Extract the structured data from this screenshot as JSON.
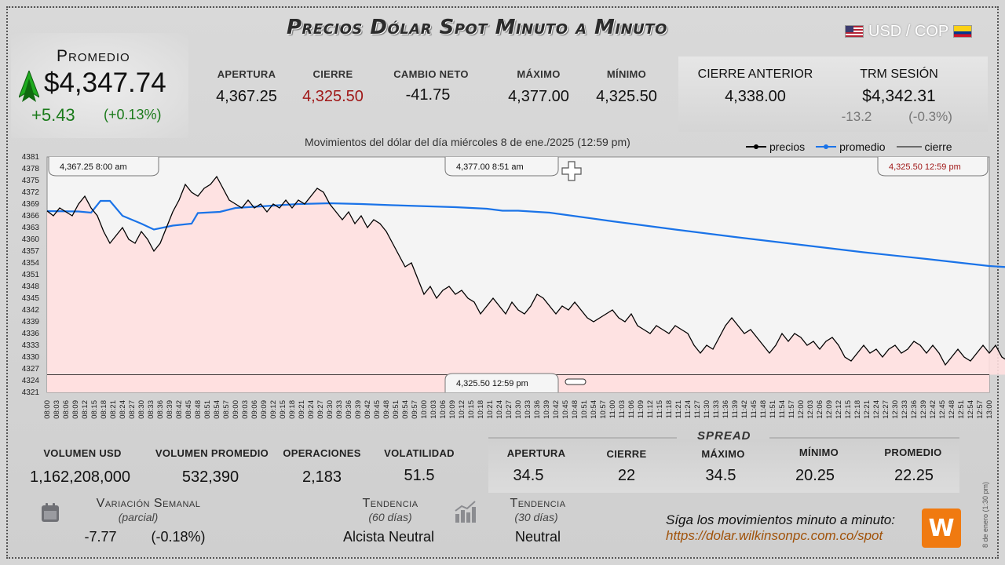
{
  "header": {
    "title": "Precios Dólar Spot Minuto a Minuto",
    "pair_label": "USD / COP"
  },
  "promedio": {
    "label": "Promedio",
    "value": "$4,347.74",
    "change": "+5.43",
    "change_pct": "(+0.13%)"
  },
  "stats": [
    {
      "label": "APERTURA",
      "value": "4,367.25"
    },
    {
      "label": "CIERRE",
      "value": "4,325.50"
    },
    {
      "label": "CAMBIO NETO",
      "value": "-41.75"
    },
    {
      "label": "MÁXIMO",
      "value": "4,377.00"
    },
    {
      "label": "MÍNIMO",
      "value": "4,325.50"
    }
  ],
  "previous": {
    "close_label": "CIERRE ANTERIOR",
    "close_value": "4,338.00",
    "trm_label": "TRM SESIÓN",
    "trm_value": "$4,342.31",
    "trm_change": "-13.2",
    "trm_change_pct": "(-0.3%)"
  },
  "chart_data": {
    "type": "line",
    "title": "Movimientos del dólar del día miércoles 8 de ene./2025 (12:59 pm)",
    "legend": [
      "precios",
      "promedio",
      "cierre"
    ],
    "legend_position": "top-right",
    "ylim": [
      4321,
      4381
    ],
    "yticks": [
      4381,
      4378,
      4375,
      4372,
      4369,
      4366,
      4363,
      4360,
      4357,
      4354,
      4351,
      4348,
      4345,
      4342,
      4339,
      4336,
      4333,
      4330,
      4327,
      4324,
      4321
    ],
    "xticks": [
      "08:00",
      "08:03",
      "08:06",
      "08:09",
      "08:12",
      "08:15",
      "08:18",
      "08:21",
      "08:24",
      "08:27",
      "08:30",
      "08:33",
      "08:36",
      "08:39",
      "08:42",
      "08:45",
      "08:48",
      "08:51",
      "08:54",
      "08:57",
      "09:00",
      "09:03",
      "09:06",
      "09:09",
      "09:12",
      "09:15",
      "09:18",
      "09:21",
      "09:24",
      "09:27",
      "09:30",
      "09:33",
      "09:36",
      "09:39",
      "09:42",
      "09:45",
      "09:48",
      "09:51",
      "09:54",
      "09:57",
      "10:00",
      "10:03",
      "10:06",
      "10:09",
      "10:12",
      "10:15",
      "10:18",
      "10:21",
      "10:24",
      "10:27",
      "10:30",
      "10:33",
      "10:36",
      "10:39",
      "10:42",
      "10:45",
      "10:48",
      "10:51",
      "10:54",
      "10:57",
      "11:00",
      "11:03",
      "11:06",
      "11:09",
      "11:12",
      "11:15",
      "11:18",
      "11:21",
      "11:24",
      "11:27",
      "11:30",
      "11:33",
      "11:36",
      "11:39",
      "11:42",
      "11:45",
      "11:48",
      "11:51",
      "11:54",
      "11:57",
      "12:00",
      "12:03",
      "12:06",
      "12:09",
      "12:12",
      "12:15",
      "12:18",
      "12:21",
      "12:24",
      "12:27",
      "12:30",
      "12:33",
      "12:36",
      "12:39",
      "12:42",
      "12:45",
      "12:48",
      "12:51",
      "12:54",
      "12:57",
      "13:00"
    ],
    "precios": {
      "name": "precios",
      "color": "#000000",
      "points": [
        [
          0,
          4367.25
        ],
        [
          2,
          4366
        ],
        [
          4,
          4368
        ],
        [
          6,
          4367
        ],
        [
          8,
          4366
        ],
        [
          10,
          4369
        ],
        [
          12,
          4371
        ],
        [
          14,
          4368
        ],
        [
          16,
          4366
        ],
        [
          18,
          4362
        ],
        [
          20,
          4359
        ],
        [
          22,
          4361
        ],
        [
          24,
          4363
        ],
        [
          26,
          4360
        ],
        [
          28,
          4359
        ],
        [
          30,
          4362
        ],
        [
          32,
          4360
        ],
        [
          34,
          4357
        ],
        [
          36,
          4359
        ],
        [
          38,
          4363
        ],
        [
          40,
          4367
        ],
        [
          42,
          4370
        ],
        [
          44,
          4374
        ],
        [
          46,
          4372
        ],
        [
          48,
          4371
        ],
        [
          50,
          4373
        ],
        [
          52,
          4374
        ],
        [
          54,
          4376
        ],
        [
          56,
          4373
        ],
        [
          58,
          4370
        ],
        [
          60,
          4369
        ],
        [
          62,
          4368
        ],
        [
          64,
          4370
        ],
        [
          66,
          4368
        ],
        [
          68,
          4369
        ],
        [
          70,
          4367
        ],
        [
          72,
          4369
        ],
        [
          74,
          4368
        ],
        [
          76,
          4370
        ],
        [
          78,
          4368
        ],
        [
          80,
          4370
        ],
        [
          82,
          4369
        ],
        [
          84,
          4371
        ],
        [
          86,
          4373
        ],
        [
          88,
          4372
        ],
        [
          90,
          4369
        ],
        [
          92,
          4367
        ],
        [
          94,
          4365
        ],
        [
          96,
          4367
        ],
        [
          98,
          4364
        ],
        [
          100,
          4366
        ],
        [
          102,
          4363
        ],
        [
          104,
          4365
        ],
        [
          106,
          4364
        ],
        [
          108,
          4362
        ],
        [
          110,
          4359
        ],
        [
          112,
          4356
        ],
        [
          114,
          4353
        ],
        [
          116,
          4354
        ],
        [
          118,
          4350
        ],
        [
          120,
          4346
        ],
        [
          122,
          4348
        ],
        [
          124,
          4345
        ],
        [
          126,
          4347
        ],
        [
          128,
          4348
        ],
        [
          130,
          4346
        ],
        [
          132,
          4347
        ],
        [
          134,
          4345
        ],
        [
          136,
          4344
        ],
        [
          138,
          4341
        ],
        [
          140,
          4343
        ],
        [
          142,
          4345
        ],
        [
          144,
          4343
        ],
        [
          146,
          4341
        ],
        [
          148,
          4344
        ],
        [
          150,
          4342
        ],
        [
          152,
          4341
        ],
        [
          154,
          4343
        ],
        [
          156,
          4346
        ],
        [
          158,
          4345
        ],
        [
          160,
          4343
        ],
        [
          162,
          4341
        ],
        [
          164,
          4343
        ],
        [
          166,
          4342
        ],
        [
          168,
          4344
        ],
        [
          170,
          4342
        ],
        [
          172,
          4340
        ],
        [
          174,
          4339
        ],
        [
          176,
          4340
        ],
        [
          178,
          4341
        ],
        [
          180,
          4342
        ],
        [
          182,
          4340
        ],
        [
          184,
          4339
        ],
        [
          186,
          4341
        ],
        [
          188,
          4338
        ],
        [
          190,
          4337
        ],
        [
          192,
          4336
        ],
        [
          194,
          4338
        ],
        [
          196,
          4337
        ],
        [
          198,
          4336
        ],
        [
          200,
          4338
        ],
        [
          202,
          4337
        ],
        [
          204,
          4336
        ],
        [
          206,
          4333
        ],
        [
          208,
          4331
        ],
        [
          210,
          4333
        ],
        [
          212,
          4332
        ],
        [
          214,
          4335
        ],
        [
          216,
          4338
        ],
        [
          218,
          4340
        ],
        [
          220,
          4338
        ],
        [
          222,
          4336
        ],
        [
          224,
          4337
        ],
        [
          226,
          4335
        ],
        [
          228,
          4333
        ],
        [
          230,
          4331
        ],
        [
          232,
          4333
        ],
        [
          234,
          4336
        ],
        [
          236,
          4334
        ],
        [
          238,
          4336
        ],
        [
          240,
          4335
        ],
        [
          242,
          4333
        ],
        [
          244,
          4334
        ],
        [
          246,
          4332
        ],
        [
          248,
          4334
        ],
        [
          250,
          4335
        ],
        [
          252,
          4333
        ],
        [
          254,
          4330
        ],
        [
          256,
          4329
        ],
        [
          258,
          4331
        ],
        [
          260,
          4333
        ],
        [
          262,
          4331
        ],
        [
          264,
          4332
        ],
        [
          266,
          4330
        ],
        [
          268,
          4332
        ],
        [
          270,
          4333
        ],
        [
          272,
          4331
        ],
        [
          274,
          4332
        ],
        [
          276,
          4334
        ],
        [
          278,
          4333
        ],
        [
          280,
          4331
        ],
        [
          282,
          4333
        ],
        [
          284,
          4331
        ],
        [
          286,
          4328
        ],
        [
          288,
          4330
        ],
        [
          290,
          4332
        ],
        [
          292,
          4330
        ],
        [
          294,
          4329
        ],
        [
          296,
          4331
        ],
        [
          298,
          4333
        ],
        [
          300,
          4331
        ],
        [
          302,
          4333
        ],
        [
          304,
          4330
        ],
        [
          306,
          4329
        ],
        [
          308,
          4330
        ],
        [
          310,
          4328
        ],
        [
          312,
          4329
        ],
        [
          314,
          4326
        ],
        [
          316,
          4327
        ],
        [
          318,
          4325.5
        ]
      ]
    },
    "promedio": {
      "name": "promedio",
      "color": "#1a73e8",
      "points": [
        [
          0,
          4367.2
        ],
        [
          10,
          4367.1
        ],
        [
          14,
          4366.8
        ],
        [
          17,
          4369.8
        ],
        [
          20,
          4369.8
        ],
        [
          24,
          4366
        ],
        [
          30,
          4364
        ],
        [
          34,
          4362.5
        ],
        [
          40,
          4363.5
        ],
        [
          46,
          4364
        ],
        [
          48,
          4366.7
        ],
        [
          55,
          4367
        ],
        [
          60,
          4368
        ],
        [
          70,
          4368.5
        ],
        [
          80,
          4369
        ],
        [
          90,
          4369.2
        ],
        [
          100,
          4369
        ],
        [
          110,
          4368.7
        ],
        [
          130,
          4368.2
        ],
        [
          140,
          4367.8
        ],
        [
          145,
          4367.3
        ],
        [
          150,
          4367.3
        ],
        [
          160,
          4366.8
        ],
        [
          180,
          4364.6
        ],
        [
          200,
          4362.5
        ],
        [
          220,
          4360.5
        ],
        [
          240,
          4358.6
        ],
        [
          260,
          4356.7
        ],
        [
          280,
          4355
        ],
        [
          300,
          4353.2
        ],
        [
          318,
          4352.3
        ]
      ]
    },
    "cierre": {
      "name": "cierre",
      "color": "#000000",
      "value": 4325.5
    },
    "annotations": [
      {
        "text": "4,367.25",
        "time": "8:00 am"
      },
      {
        "text": "4,377.00",
        "time": "8:51 am"
      },
      {
        "text": "4,325.50",
        "time": "12:59 pm"
      },
      {
        "text": "4,325.50",
        "time": "12:59 pm"
      }
    ],
    "grid": false
  },
  "volume": [
    {
      "label": "VOLUMEN USD",
      "value": "1,162,208,000"
    },
    {
      "label": "VOLUMEN PROMEDIO",
      "value": "532,390"
    },
    {
      "label": "OPERACIONES",
      "value": "2,183"
    },
    {
      "label": "VOLATILIDAD",
      "value": "51.5"
    }
  ],
  "spread": {
    "title": "SPREAD",
    "items": [
      {
        "label": "APERTURA",
        "value": "34.5"
      },
      {
        "label": "CIERRE",
        "value": "22"
      },
      {
        "label": "MÁXIMO",
        "value": "34.5"
      },
      {
        "label": "MÍNIMO",
        "value": "20.25"
      },
      {
        "label": "PROMEDIO",
        "value": "22.25"
      }
    ]
  },
  "weekly": {
    "label": "Variación Semanal",
    "sub": "(parcial)",
    "change": "-7.77",
    "change_pct": "(-0.18%)"
  },
  "trend60": {
    "label": "Tendencia",
    "sub": "(60 días)",
    "value": "Alcista Neutral"
  },
  "trend30": {
    "label": "Tendencia",
    "sub": "(30 días)",
    "value": "Neutral"
  },
  "promo": {
    "line1": "Síga los movimientos minuto a minuto:",
    "line2": "https://dolar.wilkinsonpc.com.co/spot",
    "logo_text": "W"
  },
  "side_date": "8 de enero (1:30 pm)",
  "colors": {
    "up": "#1a7a1a",
    "down": "#a01818",
    "avg_line": "#1a73e8",
    "area": "#ffe0e0"
  }
}
